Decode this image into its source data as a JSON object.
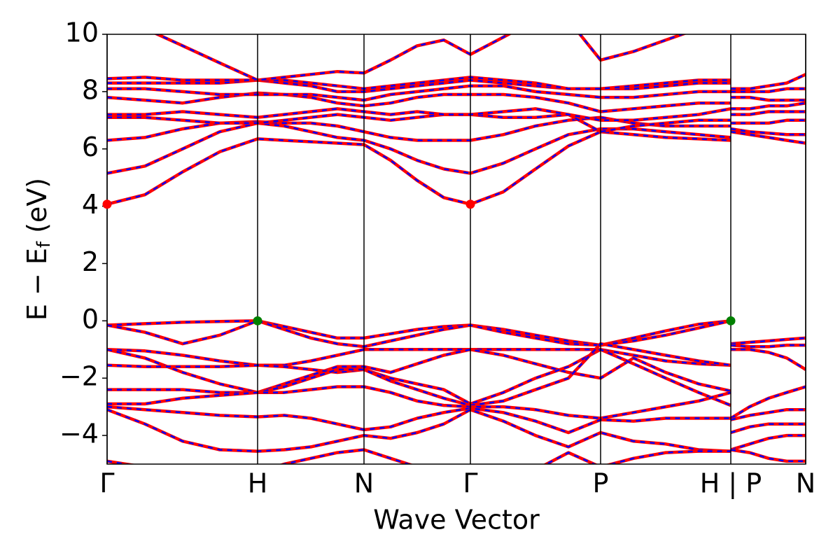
{
  "chart_data": {
    "type": "band-structure",
    "xlabel": "Wave Vector",
    "ylabel": {
      "main": "E − E",
      "sub": "f",
      "unit": " (eV)"
    },
    "ylim": [
      -5,
      10
    ],
    "yticks": [
      {
        "value": -4,
        "label": "−4"
      },
      {
        "value": -2,
        "label": "−2"
      },
      0,
      2,
      4,
      6,
      8,
      10
    ],
    "xlim": [
      0,
      9.98
    ],
    "xticks": [
      {
        "value": 0,
        "label": "Γ"
      },
      {
        "value": 2.15,
        "label": "H"
      },
      {
        "value": 3.67,
        "label": "N"
      },
      {
        "value": 5.19,
        "label": "Γ"
      },
      {
        "value": 7.05,
        "label": "P"
      },
      {
        "value": 8.91,
        "label": "H | P"
      },
      {
        "value": 9.98,
        "label": "N"
      }
    ],
    "line_color": "#ff0000",
    "dash_color": "#0000ff",
    "paths": [
      {
        "x": [
          0,
          0.54,
          1.08,
          1.61,
          2.15,
          2.53,
          2.91,
          3.29,
          3.67,
          4.05,
          4.43,
          4.81,
          5.19,
          5.66,
          6.12,
          6.59,
          7.05,
          7.52,
          7.98,
          8.45,
          8.91
        ],
        "bands": [
          [
            4.07,
            4.4,
            5.2,
            5.9,
            6.35,
            6.3,
            6.25,
            6.2,
            6.15,
            5.6,
            4.9,
            4.3,
            4.07,
            4.5,
            5.3,
            6.1,
            6.6,
            6.5,
            6.4,
            6.35,
            6.3
          ],
          [
            5.15,
            5.4,
            6.0,
            6.6,
            6.9,
            6.8,
            6.6,
            6.4,
            6.3,
            6.0,
            5.6,
            5.3,
            5.15,
            5.5,
            6.0,
            6.5,
            6.7,
            6.7,
            6.6,
            6.5,
            6.4
          ],
          [
            6.3,
            6.4,
            6.7,
            6.9,
            6.95,
            6.9,
            6.9,
            6.8,
            6.6,
            6.4,
            6.3,
            6.3,
            6.3,
            6.5,
            6.8,
            7.0,
            7.1,
            6.9,
            6.8,
            6.8,
            6.8
          ],
          [
            7.1,
            7.1,
            7.0,
            6.9,
            6.9,
            7.0,
            7.1,
            7.2,
            7.1,
            7.0,
            7.1,
            7.2,
            7.2,
            7.1,
            7.1,
            7.2,
            6.6,
            6.8,
            6.9,
            7.0,
            7.0
          ],
          [
            7.2,
            7.2,
            7.3,
            7.2,
            7.1,
            7.2,
            7.3,
            7.4,
            7.3,
            7.2,
            7.3,
            7.2,
            7.2,
            7.3,
            7.4,
            7.2,
            7.0,
            7.0,
            7.1,
            7.2,
            7.4
          ],
          [
            7.8,
            7.7,
            7.6,
            7.8,
            7.95,
            7.9,
            7.8,
            7.6,
            7.5,
            7.6,
            7.8,
            7.9,
            7.9,
            7.9,
            7.8,
            7.6,
            7.3,
            7.4,
            7.5,
            7.6,
            7.6
          ],
          [
            8.1,
            8.1,
            8.0,
            7.9,
            7.9,
            7.9,
            7.9,
            7.8,
            7.7,
            7.9,
            8.0,
            8.1,
            8.2,
            8.2,
            8.0,
            7.9,
            7.8,
            7.8,
            7.9,
            8.0,
            8.0
          ],
          [
            8.3,
            8.3,
            8.3,
            8.3,
            8.4,
            8.3,
            8.2,
            8.0,
            8.0,
            8.1,
            8.2,
            8.3,
            8.4,
            8.3,
            8.2,
            8.1,
            8.1,
            8.1,
            8.2,
            8.3,
            8.3
          ],
          [
            8.45,
            8.5,
            8.4,
            8.4,
            8.4,
            8.4,
            8.3,
            8.2,
            8.1,
            8.2,
            8.3,
            8.4,
            8.5,
            8.4,
            8.3,
            8.1,
            8.1,
            8.2,
            8.3,
            8.4,
            8.4
          ],
          [
            10.5,
            10.2,
            9.6,
            9.0,
            8.4,
            8.5,
            8.6,
            8.7,
            8.65,
            9.1,
            9.6,
            9.8,
            9.3,
            9.9,
            10.5,
            10.5,
            9.1,
            9.4,
            9.8,
            10.2,
            10.5
          ],
          [
            -0.15,
            -0.1,
            -0.05,
            -0.02,
            0,
            -0.2,
            -0.4,
            -0.6,
            -0.6,
            -0.45,
            -0.3,
            -0.2,
            -0.15,
            -0.3,
            -0.5,
            -0.7,
            -0.85,
            -0.6,
            -0.35,
            -0.12,
            0
          ],
          [
            -0.15,
            -0.4,
            -0.8,
            -0.5,
            0,
            -0.3,
            -0.6,
            -0.8,
            -0.9,
            -0.7,
            -0.5,
            -0.3,
            -0.15,
            -0.4,
            -0.6,
            -0.8,
            -0.85,
            -0.7,
            -0.5,
            -0.25,
            0
          ],
          [
            -1.0,
            -1.05,
            -1.2,
            -1.4,
            -1.55,
            -1.55,
            -1.4,
            -1.2,
            -1.0,
            -1.0,
            -1.0,
            -1.0,
            -1.0,
            -1.0,
            -1.0,
            -1.0,
            -1.0,
            -1.2,
            -1.4,
            -1.5,
            -1.55
          ],
          [
            -1.0,
            -1.3,
            -1.8,
            -2.2,
            -2.5,
            -2.2,
            -1.9,
            -1.6,
            -1.6,
            -1.8,
            -1.5,
            -1.2,
            -1.0,
            -1.2,
            -1.5,
            -1.8,
            -2.0,
            -1.3,
            -1.8,
            -2.2,
            -2.45
          ],
          [
            -1.55,
            -1.6,
            -1.6,
            -1.6,
            -1.55,
            -1.6,
            -1.7,
            -1.8,
            -1.7,
            -2.0,
            -2.2,
            -2.4,
            -2.9,
            -2.5,
            -2.0,
            -1.6,
            -1.0,
            -1.5,
            -2.0,
            -2.5,
            -2.95
          ],
          [
            -2.4,
            -2.4,
            -2.4,
            -2.5,
            -2.5,
            -2.3,
            -2.0,
            -1.7,
            -1.7,
            -2.1,
            -2.4,
            -2.7,
            -2.95,
            -2.8,
            -2.4,
            -2.0,
            -0.8,
            -1.0,
            -1.2,
            -1.4,
            -1.55
          ],
          [
            -2.9,
            -2.9,
            -2.7,
            -2.6,
            -2.5,
            -2.5,
            -2.4,
            -2.3,
            -2.3,
            -2.5,
            -2.8,
            -2.95,
            -3.0,
            -3.0,
            -3.1,
            -3.3,
            -3.4,
            -3.2,
            -3.0,
            -2.8,
            -2.5
          ],
          [
            -3.0,
            -3.1,
            -3.2,
            -3.3,
            -3.35,
            -3.3,
            -3.4,
            -3.6,
            -3.8,
            -3.7,
            -3.4,
            -3.2,
            -3.05,
            -3.2,
            -3.5,
            -3.9,
            -3.45,
            -3.5,
            -3.4,
            -3.4,
            -3.4
          ],
          [
            -3.1,
            -3.6,
            -4.2,
            -4.5,
            -4.55,
            -4.5,
            -4.4,
            -4.2,
            -4.0,
            -4.1,
            -3.9,
            -3.6,
            -3.1,
            -3.5,
            -4.0,
            -4.4,
            -3.9,
            -4.2,
            -4.3,
            -4.5,
            -4.55
          ],
          [
            -4.9,
            -5.1,
            -5.3,
            -5.3,
            -5.3,
            -5.0,
            -4.8,
            -4.6,
            -4.5,
            -4.8,
            -5.1,
            -5.3,
            -5.5,
            -5.4,
            -5.2,
            -4.6,
            -5.1,
            -4.8,
            -4.6,
            -4.55,
            -4.55
          ]
        ]
      },
      {
        "x": [
          8.91,
          9.18,
          9.45,
          9.71,
          9.98
        ],
        "bands": [
          [
            6.6,
            6.5,
            6.4,
            6.3,
            6.2
          ],
          [
            6.7,
            6.6,
            6.55,
            6.5,
            6.5
          ],
          [
            6.9,
            6.9,
            6.9,
            7.0,
            7.0
          ],
          [
            7.2,
            7.2,
            7.3,
            7.3,
            7.3
          ],
          [
            7.4,
            7.4,
            7.5,
            7.5,
            7.6
          ],
          [
            7.8,
            7.8,
            7.7,
            7.7,
            7.7
          ],
          [
            8.0,
            8.0,
            8.0,
            8.1,
            8.1
          ],
          [
            8.1,
            8.1,
            8.2,
            8.3,
            8.6
          ],
          [
            -0.8,
            -0.75,
            -0.7,
            -0.65,
            -0.6
          ],
          [
            -0.85,
            -0.9,
            -0.9,
            -0.85,
            -0.85
          ],
          [
            -1.0,
            -1.0,
            -1.1,
            -1.3,
            -1.7
          ],
          [
            -3.4,
            -3.0,
            -2.7,
            -2.5,
            -2.3
          ],
          [
            -3.45,
            -3.3,
            -3.2,
            -3.1,
            -3.1
          ],
          [
            -3.9,
            -3.7,
            -3.6,
            -3.6,
            -3.6
          ],
          [
            -4.5,
            -4.3,
            -4.1,
            -4.0,
            -4.0
          ],
          [
            -4.5,
            -4.6,
            -4.8,
            -4.9,
            -4.9
          ]
        ]
      }
    ],
    "points": [
      {
        "x": 0,
        "y": 4.07,
        "color": "#ff0000"
      },
      {
        "x": 5.19,
        "y": 4.07,
        "color": "#ff0000"
      },
      {
        "x": 2.15,
        "y": 0,
        "color": "#008000"
      },
      {
        "x": 8.91,
        "y": 0,
        "color": "#008000"
      }
    ]
  }
}
